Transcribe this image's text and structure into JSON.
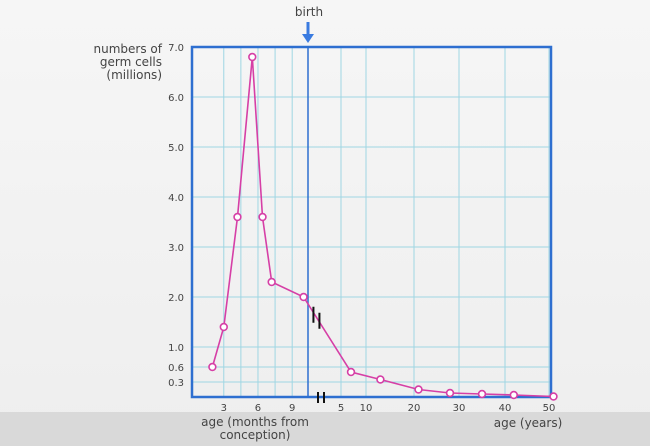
{
  "chart_data": {
    "type": "line",
    "ylabel": [
      "numbers of",
      "germ cells",
      "(millions)"
    ],
    "xlabel_months": [
      "age (months from",
      "conception)"
    ],
    "xlabel_years": "age (years)",
    "annotation": "birth",
    "ylim": [
      0,
      7.0
    ],
    "y_ticks": [
      "7.0",
      "6.0",
      "5.0",
      "4.0",
      "3.0",
      "2.0",
      "1.0",
      "0.6",
      "0.3"
    ],
    "x_ticks_months": [
      "3",
      "6",
      "9"
    ],
    "x_ticks_years": [
      "5",
      "10",
      "20",
      "30",
      "40",
      "50"
    ],
    "series": [
      {
        "color": "#d63fa6",
        "points": [
          {
            "segment": "months",
            "x": 2,
            "y": 0.6
          },
          {
            "segment": "months",
            "x": 3,
            "y": 1.4
          },
          {
            "segment": "months",
            "x": 4.2,
            "y": 3.6
          },
          {
            "segment": "months",
            "x": 5.5,
            "y": 6.8
          },
          {
            "segment": "months",
            "x": 6.4,
            "y": 3.6
          },
          {
            "segment": "months",
            "x": 7.2,
            "y": 2.3
          },
          {
            "segment": "months",
            "x": 10,
            "y": 2.0
          },
          {
            "segment": "years",
            "x": 7,
            "y": 0.5
          },
          {
            "segment": "years",
            "x": 13,
            "y": 0.35
          },
          {
            "segment": "years",
            "x": 21,
            "y": 0.15
          },
          {
            "segment": "years",
            "x": 28,
            "y": 0.08
          },
          {
            "segment": "years",
            "x": 35,
            "y": 0.06
          },
          {
            "segment": "years",
            "x": 42,
            "y": 0.04
          },
          {
            "segment": "years",
            "x": 51,
            "y": 0.01
          }
        ]
      }
    ],
    "colors": {
      "frame": "#2e6fd0",
      "grid": "#9fd6e3",
      "birth_line": "#2e6fd0",
      "series": "#d63fa6"
    },
    "grid": true
  }
}
